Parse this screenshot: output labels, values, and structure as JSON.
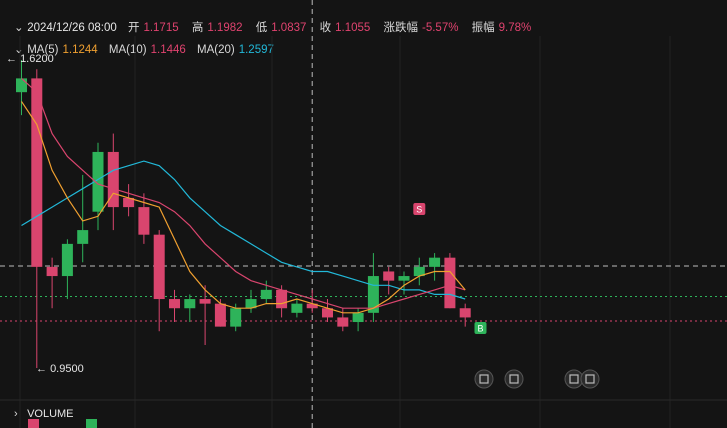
{
  "ohlc": {
    "date": "2024/12/26 08:00",
    "open_label": "开",
    "open": "1.1715",
    "high_label": "高",
    "high": "1.1982",
    "low_label": "低",
    "low": "1.0837",
    "close_label": "收",
    "close": "1.1055",
    "change_label": "涨跌幅",
    "change": "-5.57%",
    "amplitude_label": "振幅",
    "amplitude": "9.78%"
  },
  "ma": {
    "ma5_label": "MA(5)",
    "ma5": "1.1244",
    "ma10_label": "MA(10)",
    "ma10": "1.1446",
    "ma20_label": "MA(20)",
    "ma20": "1.2597"
  },
  "price_marks": {
    "high": "1.6200",
    "low": "0.9500"
  },
  "signals": {
    "sell": "S",
    "buy": "B"
  },
  "volume_label": "VOLUME",
  "colors": {
    "up": "#2eb35a",
    "down": "#d9456e",
    "ma5": "#f0a030",
    "ma10": "#d9456e",
    "ma20": "#22b8d8",
    "background": "#141414"
  },
  "chart_data": {
    "type": "candlestick",
    "ylim": [
      0.95,
      1.62
    ],
    "candles": [
      {
        "o": 1.55,
        "h": 1.62,
        "l": 1.5,
        "c": 1.58
      },
      {
        "o": 1.58,
        "h": 1.6,
        "l": 0.95,
        "c": 1.17
      },
      {
        "o": 1.17,
        "h": 1.19,
        "l": 1.08,
        "c": 1.15
      },
      {
        "o": 1.15,
        "h": 1.23,
        "l": 1.1,
        "c": 1.22
      },
      {
        "o": 1.22,
        "h": 1.37,
        "l": 1.18,
        "c": 1.25
      },
      {
        "o": 1.29,
        "h": 1.44,
        "l": 1.25,
        "c": 1.42
      },
      {
        "o": 1.42,
        "h": 1.46,
        "l": 1.25,
        "c": 1.3
      },
      {
        "o": 1.32,
        "h": 1.35,
        "l": 1.28,
        "c": 1.3
      },
      {
        "o": 1.3,
        "h": 1.33,
        "l": 1.22,
        "c": 1.24
      },
      {
        "o": 1.24,
        "h": 1.25,
        "l": 1.03,
        "c": 1.1
      },
      {
        "o": 1.1,
        "h": 1.12,
        "l": 1.05,
        "c": 1.08
      },
      {
        "o": 1.08,
        "h": 1.11,
        "l": 1.05,
        "c": 1.1
      },
      {
        "o": 1.1,
        "h": 1.13,
        "l": 1.0,
        "c": 1.09
      },
      {
        "o": 1.09,
        "h": 1.1,
        "l": 1.04,
        "c": 1.04
      },
      {
        "o": 1.04,
        "h": 1.09,
        "l": 1.03,
        "c": 1.08
      },
      {
        "o": 1.08,
        "h": 1.12,
        "l": 1.07,
        "c": 1.1
      },
      {
        "o": 1.1,
        "h": 1.14,
        "l": 1.09,
        "c": 1.12
      },
      {
        "o": 1.12,
        "h": 1.13,
        "l": 1.06,
        "c": 1.08
      },
      {
        "o": 1.07,
        "h": 1.1,
        "l": 1.06,
        "c": 1.09
      },
      {
        "o": 1.09,
        "h": 1.12,
        "l": 1.07,
        "c": 1.08
      },
      {
        "o": 1.08,
        "h": 1.1,
        "l": 1.05,
        "c": 1.06
      },
      {
        "o": 1.06,
        "h": 1.08,
        "l": 1.03,
        "c": 1.04
      },
      {
        "o": 1.05,
        "h": 1.08,
        "l": 1.03,
        "c": 1.07
      },
      {
        "o": 1.07,
        "h": 1.2,
        "l": 1.05,
        "c": 1.15
      },
      {
        "o": 1.16,
        "h": 1.17,
        "l": 1.11,
        "c": 1.14
      },
      {
        "o": 1.14,
        "h": 1.16,
        "l": 1.11,
        "c": 1.15
      },
      {
        "o": 1.15,
        "h": 1.19,
        "l": 1.13,
        "c": 1.17
      },
      {
        "o": 1.17,
        "h": 1.2,
        "l": 1.14,
        "c": 1.19
      },
      {
        "o": 1.19,
        "h": 1.2,
        "l": 1.08,
        "c": 1.08
      },
      {
        "o": 1.08,
        "h": 1.09,
        "l": 1.04,
        "c": 1.06
      }
    ],
    "ma5": [
      1.53,
      1.48,
      1.38,
      1.32,
      1.27,
      1.28,
      1.33,
      1.32,
      1.31,
      1.3,
      1.23,
      1.16,
      1.12,
      1.09,
      1.08,
      1.08,
      1.09,
      1.09,
      1.1,
      1.09,
      1.08,
      1.07,
      1.07,
      1.08,
      1.1,
      1.13,
      1.15,
      1.16,
      1.16,
      1.12
    ],
    "ma10": [
      1.58,
      1.55,
      1.46,
      1.41,
      1.38,
      1.35,
      1.34,
      1.33,
      1.32,
      1.31,
      1.29,
      1.26,
      1.22,
      1.19,
      1.16,
      1.14,
      1.13,
      1.12,
      1.11,
      1.1,
      1.09,
      1.08,
      1.08,
      1.08,
      1.09,
      1.1,
      1.11,
      1.12,
      1.13,
      1.12
    ],
    "ma20": [
      1.26,
      1.28,
      1.3,
      1.32,
      1.34,
      1.36,
      1.38,
      1.39,
      1.4,
      1.39,
      1.36,
      1.32,
      1.29,
      1.26,
      1.24,
      1.22,
      1.2,
      1.18,
      1.17,
      1.16,
      1.16,
      1.15,
      1.14,
      1.13,
      1.13,
      1.12,
      1.12,
      1.11,
      1.11,
      1.1
    ],
    "signals": [
      {
        "index": 26,
        "type": "sell"
      },
      {
        "index": 30,
        "type": "buy"
      }
    ],
    "current_price": 1.1055,
    "crosshair_index": 19
  }
}
